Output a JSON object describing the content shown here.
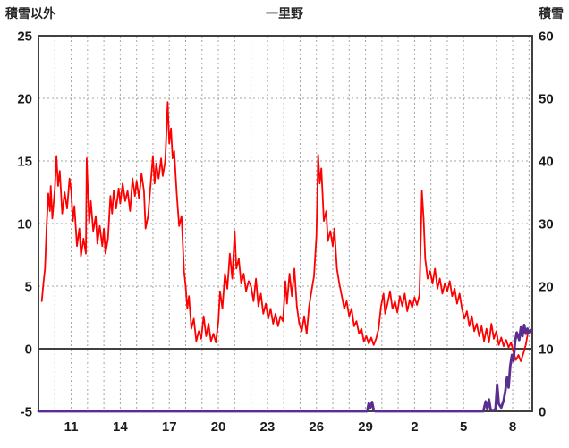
{
  "chart_data": {
    "type": "line",
    "title": "一里野",
    "x_axis": {
      "range": [
        9,
        39.2
      ],
      "gridline_step": 1,
      "tick_labels": [
        {
          "pos": 11,
          "label": "11"
        },
        {
          "pos": 14,
          "label": "14"
        },
        {
          "pos": 17,
          "label": "17"
        },
        {
          "pos": 20,
          "label": "20"
        },
        {
          "pos": 23,
          "label": "23"
        },
        {
          "pos": 26,
          "label": "26"
        },
        {
          "pos": 29,
          "label": "29"
        },
        {
          "pos": 32,
          "label": "2"
        },
        {
          "pos": 35,
          "label": "5"
        },
        {
          "pos": 38,
          "label": "8"
        }
      ]
    },
    "y_left": {
      "title": "積雪以外",
      "range": [
        -5,
        25
      ],
      "ticks": [
        25,
        20,
        15,
        10,
        5,
        0,
        -5
      ],
      "zero_line": true
    },
    "y_right": {
      "title": "積雪",
      "range": [
        0,
        60
      ],
      "ticks": [
        60,
        50,
        40,
        30,
        20,
        10,
        0
      ]
    },
    "grid": {
      "color": "#a3a3a3",
      "frame_color": "#404040",
      "zero_line_color": "#404040"
    },
    "series": [
      {
        "label": "積雪以外",
        "axis": "left",
        "color": "#ff0000",
        "width": 1.8,
        "points": [
          [
            9.2,
            3.8
          ],
          [
            9.3,
            5.2
          ],
          [
            9.4,
            6.4
          ],
          [
            9.5,
            9.8
          ],
          [
            9.6,
            12.4
          ],
          [
            9.7,
            11.0
          ],
          [
            9.75,
            13.0
          ],
          [
            9.85,
            10.4
          ],
          [
            10.0,
            12.8
          ],
          [
            10.1,
            15.4
          ],
          [
            10.2,
            13.0
          ],
          [
            10.3,
            14.2
          ],
          [
            10.45,
            10.8
          ],
          [
            10.6,
            12.5
          ],
          [
            10.75,
            11.2
          ],
          [
            10.9,
            13.6
          ],
          [
            11.0,
            12.6
          ],
          [
            11.1,
            10.2
          ],
          [
            11.2,
            11.4
          ],
          [
            11.35,
            8.2
          ],
          [
            11.5,
            9.6
          ],
          [
            11.6,
            7.4
          ],
          [
            11.75,
            8.8
          ],
          [
            11.9,
            7.6
          ],
          [
            11.95,
            15.2
          ],
          [
            12.1,
            10.0
          ],
          [
            12.2,
            11.8
          ],
          [
            12.35,
            9.4
          ],
          [
            12.5,
            10.6
          ],
          [
            12.6,
            8.4
          ],
          [
            12.75,
            9.8
          ],
          [
            12.9,
            8.2
          ],
          [
            13.0,
            9.6
          ],
          [
            13.1,
            7.6
          ],
          [
            13.25,
            8.8
          ],
          [
            13.4,
            12.2
          ],
          [
            13.5,
            10.8
          ],
          [
            13.6,
            12.6
          ],
          [
            13.75,
            11.2
          ],
          [
            13.9,
            12.8
          ],
          [
            14.0,
            11.6
          ],
          [
            14.15,
            13.2
          ],
          [
            14.3,
            11.8
          ],
          [
            14.45,
            12.6
          ],
          [
            14.6,
            11.0
          ],
          [
            14.75,
            13.6
          ],
          [
            14.9,
            12.2
          ],
          [
            15.0,
            13.4
          ],
          [
            15.15,
            12.0
          ],
          [
            15.3,
            14.0
          ],
          [
            15.45,
            12.6
          ],
          [
            15.55,
            9.6
          ],
          [
            15.7,
            10.6
          ],
          [
            15.85,
            13.0
          ],
          [
            16.0,
            15.4
          ],
          [
            16.1,
            13.2
          ],
          [
            16.2,
            14.8
          ],
          [
            16.35,
            13.6
          ],
          [
            16.5,
            15.2
          ],
          [
            16.6,
            13.8
          ],
          [
            16.75,
            15.0
          ],
          [
            16.9,
            19.7
          ],
          [
            17.0,
            16.4
          ],
          [
            17.1,
            17.6
          ],
          [
            17.2,
            15.2
          ],
          [
            17.3,
            15.8
          ],
          [
            17.45,
            12.4
          ],
          [
            17.6,
            9.8
          ],
          [
            17.75,
            10.6
          ],
          [
            17.9,
            6.2
          ],
          [
            18.0,
            5.0
          ],
          [
            18.1,
            3.2
          ],
          [
            18.2,
            4.2
          ],
          [
            18.35,
            1.6
          ],
          [
            18.5,
            2.4
          ],
          [
            18.65,
            0.6
          ],
          [
            18.8,
            1.4
          ],
          [
            18.95,
            0.8
          ],
          [
            19.1,
            2.6
          ],
          [
            19.25,
            1.0
          ],
          [
            19.4,
            2.0
          ],
          [
            19.55,
            0.6
          ],
          [
            19.7,
            1.2
          ],
          [
            19.85,
            0.5
          ],
          [
            20.0,
            2.2
          ],
          [
            20.1,
            4.6
          ],
          [
            20.25,
            3.2
          ],
          [
            20.4,
            6.0
          ],
          [
            20.55,
            4.8
          ],
          [
            20.7,
            7.6
          ],
          [
            20.85,
            5.6
          ],
          [
            21.0,
            9.4
          ],
          [
            21.1,
            6.4
          ],
          [
            21.25,
            7.2
          ],
          [
            21.4,
            5.2
          ],
          [
            21.55,
            6.0
          ],
          [
            21.7,
            4.6
          ],
          [
            21.85,
            5.4
          ],
          [
            22.0,
            5.0
          ],
          [
            22.15,
            3.8
          ],
          [
            22.3,
            5.6
          ],
          [
            22.45,
            3.4
          ],
          [
            22.6,
            4.4
          ],
          [
            22.75,
            2.8
          ],
          [
            22.9,
            3.6
          ],
          [
            23.05,
            2.4
          ],
          [
            23.2,
            3.2
          ],
          [
            23.35,
            2.0
          ],
          [
            23.5,
            2.8
          ],
          [
            23.65,
            1.8
          ],
          [
            23.8,
            2.6
          ],
          [
            23.95,
            2.2
          ],
          [
            24.1,
            5.4
          ],
          [
            24.2,
            3.6
          ],
          [
            24.35,
            6.0
          ],
          [
            24.5,
            4.2
          ],
          [
            24.65,
            6.4
          ],
          [
            24.8,
            3.4
          ],
          [
            24.95,
            2.0
          ],
          [
            25.1,
            1.4
          ],
          [
            25.25,
            2.6
          ],
          [
            25.4,
            1.2
          ],
          [
            25.55,
            3.4
          ],
          [
            25.7,
            4.6
          ],
          [
            25.85,
            5.8
          ],
          [
            26.0,
            9.0
          ],
          [
            26.1,
            15.5
          ],
          [
            26.2,
            13.2
          ],
          [
            26.3,
            14.4
          ],
          [
            26.45,
            10.2
          ],
          [
            26.6,
            11.0
          ],
          [
            26.7,
            8.6
          ],
          [
            26.85,
            9.4
          ],
          [
            27.0,
            8.2
          ],
          [
            27.1,
            9.6
          ],
          [
            27.25,
            6.4
          ],
          [
            27.4,
            5.2
          ],
          [
            27.55,
            4.2
          ],
          [
            27.7,
            3.2
          ],
          [
            27.85,
            3.8
          ],
          [
            28.0,
            2.6
          ],
          [
            28.15,
            3.2
          ],
          [
            28.3,
            1.8
          ],
          [
            28.45,
            2.2
          ],
          [
            28.6,
            1.2
          ],
          [
            28.75,
            1.6
          ],
          [
            28.9,
            0.6
          ],
          [
            29.05,
            1.0
          ],
          [
            29.2,
            0.4
          ],
          [
            29.35,
            0.9
          ],
          [
            29.5,
            0.3
          ],
          [
            29.65,
            0.8
          ],
          [
            29.8,
            1.6
          ],
          [
            29.95,
            3.4
          ],
          [
            30.1,
            4.4
          ],
          [
            30.2,
            2.8
          ],
          [
            30.35,
            3.6
          ],
          [
            30.5,
            4.6
          ],
          [
            30.65,
            3.2
          ],
          [
            30.8,
            3.8
          ],
          [
            30.95,
            2.9
          ],
          [
            31.1,
            4.2
          ],
          [
            31.25,
            3.4
          ],
          [
            31.4,
            4.4
          ],
          [
            31.55,
            3.0
          ],
          [
            31.7,
            3.9
          ],
          [
            31.85,
            3.3
          ],
          [
            32.0,
            4.1
          ],
          [
            32.15,
            3.5
          ],
          [
            32.3,
            4.3
          ],
          [
            32.45,
            12.6
          ],
          [
            32.55,
            10.4
          ],
          [
            32.65,
            7.2
          ],
          [
            32.8,
            5.6
          ],
          [
            32.95,
            6.2
          ],
          [
            33.1,
            5.2
          ],
          [
            33.25,
            6.4
          ],
          [
            33.4,
            4.8
          ],
          [
            33.55,
            5.6
          ],
          [
            33.7,
            4.4
          ],
          [
            33.85,
            5.2
          ],
          [
            34.0,
            4.6
          ],
          [
            34.15,
            5.4
          ],
          [
            34.3,
            4.2
          ],
          [
            34.45,
            4.8
          ],
          [
            34.6,
            3.6
          ],
          [
            34.75,
            4.4
          ],
          [
            34.9,
            3.2
          ],
          [
            35.05,
            2.4
          ],
          [
            35.2,
            3.0
          ],
          [
            35.35,
            1.8
          ],
          [
            35.5,
            2.6
          ],
          [
            35.65,
            1.4
          ],
          [
            35.8,
            2.0
          ],
          [
            35.95,
            1.0
          ],
          [
            36.1,
            1.8
          ],
          [
            36.25,
            0.6
          ],
          [
            36.4,
            1.6
          ],
          [
            36.55,
            0.5
          ],
          [
            36.7,
            2.0
          ],
          [
            36.85,
            0.8
          ],
          [
            37.0,
            1.4
          ],
          [
            37.15,
            0.3
          ],
          [
            37.3,
            0.9
          ],
          [
            37.45,
            0.2
          ],
          [
            37.6,
            0.7
          ],
          [
            37.75,
            0.1
          ],
          [
            37.9,
            0.5
          ],
          [
            38.05,
            -0.3
          ],
          [
            38.2,
            -0.9
          ],
          [
            38.35,
            -0.5
          ],
          [
            38.5,
            -1.0
          ],
          [
            38.65,
            -0.4
          ],
          [
            38.8,
            0.3
          ],
          [
            38.95,
            1.4
          ]
        ]
      },
      {
        "label": "積雪",
        "axis": "right",
        "color": "#5a2d91",
        "width": 2.8,
        "points": [
          [
            9.0,
            0
          ],
          [
            28.0,
            0
          ],
          [
            29.1,
            0
          ],
          [
            29.2,
            1.3
          ],
          [
            29.3,
            0.6
          ],
          [
            29.4,
            1.5
          ],
          [
            29.5,
            0.2
          ],
          [
            29.6,
            0
          ],
          [
            36.2,
            0
          ],
          [
            36.35,
            1.6
          ],
          [
            36.45,
            0.4
          ],
          [
            36.55,
            1.9
          ],
          [
            36.65,
            0.3
          ],
          [
            36.8,
            0.1
          ],
          [
            36.95,
            0.4
          ],
          [
            37.05,
            4.3
          ],
          [
            37.15,
            1.2
          ],
          [
            37.3,
            0.6
          ],
          [
            37.45,
            1.8
          ],
          [
            37.55,
            3.2
          ],
          [
            37.65,
            5.4
          ],
          [
            37.75,
            3.8
          ],
          [
            37.85,
            7.2
          ],
          [
            37.95,
            9.0
          ],
          [
            38.05,
            8.0
          ],
          [
            38.15,
            11.2
          ],
          [
            38.25,
            12.6
          ],
          [
            38.4,
            11.4
          ],
          [
            38.5,
            13.4
          ],
          [
            38.6,
            12.0
          ],
          [
            38.7,
            13.8
          ],
          [
            38.8,
            12.4
          ],
          [
            38.9,
            13.2
          ],
          [
            39.0,
            12.6
          ],
          [
            39.1,
            13.0
          ]
        ]
      }
    ]
  }
}
